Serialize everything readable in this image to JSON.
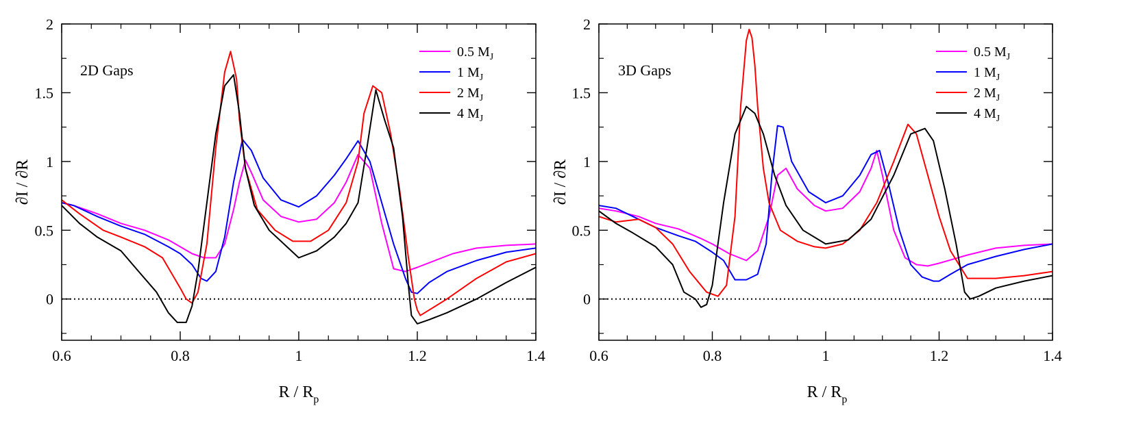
{
  "chart_data": [
    {
      "type": "line",
      "annotation": "2D Gaps",
      "xlabel": "R / R",
      "xlabel_sub": "p",
      "ylabel": "∂I / ∂R",
      "xlim": [
        0.6,
        1.4
      ],
      "ylim": [
        -0.3,
        2.0
      ],
      "xticks": [
        0.6,
        0.8,
        1.0,
        1.2,
        1.4
      ],
      "xtick_labels": [
        "0.6",
        "0.8",
        "1",
        "1.2",
        "1.4"
      ],
      "yticks": [
        0,
        0.5,
        1.0,
        1.5,
        2.0
      ],
      "ytick_labels": [
        "0",
        "0.5",
        "1",
        "1.5",
        "2"
      ],
      "zero_line": true,
      "grid": false,
      "legend": "top-right",
      "series": [
        {
          "name": "0.5 M",
          "sub": "J",
          "color": "#ff00ff",
          "x": [
            0.6,
            0.62,
            0.66,
            0.7,
            0.74,
            0.78,
            0.8,
            0.82,
            0.84,
            0.86,
            0.875,
            0.89,
            0.9,
            0.91,
            0.92,
            0.94,
            0.97,
            1.0,
            1.03,
            1.06,
            1.08,
            1.1,
            1.12,
            1.14,
            1.16,
            1.18,
            1.2,
            1.23,
            1.26,
            1.3,
            1.35,
            1.4
          ],
          "y": [
            0.7,
            0.68,
            0.62,
            0.55,
            0.5,
            0.43,
            0.38,
            0.33,
            0.3,
            0.3,
            0.4,
            0.65,
            0.85,
            1.01,
            0.92,
            0.72,
            0.6,
            0.56,
            0.58,
            0.7,
            0.85,
            1.05,
            0.95,
            0.55,
            0.22,
            0.2,
            0.23,
            0.28,
            0.33,
            0.37,
            0.39,
            0.4
          ]
        },
        {
          "name": "1 M",
          "sub": "J",
          "color": "#0000ff",
          "x": [
            0.6,
            0.62,
            0.66,
            0.7,
            0.74,
            0.78,
            0.8,
            0.82,
            0.835,
            0.845,
            0.86,
            0.875,
            0.89,
            0.905,
            0.92,
            0.94,
            0.97,
            1.0,
            1.03,
            1.06,
            1.08,
            1.1,
            1.12,
            1.14,
            1.16,
            1.18,
            1.19,
            1.2,
            1.22,
            1.25,
            1.3,
            1.35,
            1.4
          ],
          "y": [
            0.7,
            0.68,
            0.6,
            0.53,
            0.47,
            0.38,
            0.33,
            0.25,
            0.15,
            0.13,
            0.2,
            0.45,
            0.85,
            1.16,
            1.08,
            0.88,
            0.72,
            0.67,
            0.75,
            0.9,
            1.02,
            1.15,
            1.0,
            0.7,
            0.4,
            0.15,
            0.05,
            0.04,
            0.12,
            0.2,
            0.28,
            0.34,
            0.37
          ]
        },
        {
          "name": "2 M",
          "sub": "J",
          "color": "#ff0000",
          "x": [
            0.6,
            0.63,
            0.67,
            0.7,
            0.74,
            0.77,
            0.8,
            0.81,
            0.82,
            0.83,
            0.845,
            0.86,
            0.875,
            0.885,
            0.895,
            0.9,
            0.91,
            0.93,
            0.96,
            0.99,
            1.02,
            1.05,
            1.08,
            1.1,
            1.11,
            1.125,
            1.14,
            1.155,
            1.17,
            1.185,
            1.195,
            1.2,
            1.205,
            1.22,
            1.25,
            1.3,
            1.35,
            1.4
          ],
          "y": [
            0.72,
            0.62,
            0.5,
            0.45,
            0.38,
            0.3,
            0.08,
            0.0,
            -0.03,
            0.05,
            0.4,
            1.1,
            1.65,
            1.8,
            1.6,
            1.3,
            0.95,
            0.65,
            0.5,
            0.42,
            0.42,
            0.5,
            0.7,
            1.0,
            1.35,
            1.55,
            1.5,
            1.2,
            0.8,
            0.3,
            0.0,
            -0.08,
            -0.12,
            -0.08,
            0.0,
            0.15,
            0.27,
            0.33
          ]
        },
        {
          "name": "4 M",
          "sub": "J",
          "color": "#000000",
          "x": [
            0.6,
            0.63,
            0.66,
            0.7,
            0.73,
            0.76,
            0.78,
            0.795,
            0.81,
            0.82,
            0.83,
            0.845,
            0.86,
            0.875,
            0.89,
            0.9,
            0.91,
            0.925,
            0.95,
            0.98,
            1.0,
            1.03,
            1.06,
            1.08,
            1.1,
            1.115,
            1.13,
            1.145,
            1.16,
            1.175,
            1.185,
            1.19,
            1.2,
            1.22,
            1.25,
            1.3,
            1.35,
            1.4
          ],
          "y": [
            0.68,
            0.55,
            0.45,
            0.35,
            0.2,
            0.05,
            -0.1,
            -0.17,
            -0.17,
            -0.05,
            0.2,
            0.7,
            1.2,
            1.55,
            1.63,
            1.35,
            0.95,
            0.68,
            0.5,
            0.38,
            0.3,
            0.35,
            0.45,
            0.55,
            0.7,
            1.1,
            1.52,
            1.3,
            1.1,
            0.6,
            0.1,
            -0.12,
            -0.18,
            -0.15,
            -0.1,
            0.0,
            0.12,
            0.23
          ]
        }
      ]
    },
    {
      "type": "line",
      "annotation": "3D Gaps",
      "xlabel": "R / R",
      "xlabel_sub": "p",
      "ylabel": "∂I / ∂R",
      "xlim": [
        0.6,
        1.4
      ],
      "ylim": [
        -0.3,
        2.0
      ],
      "xticks": [
        0.6,
        0.8,
        1.0,
        1.2,
        1.4
      ],
      "xtick_labels": [
        "0.6",
        "0.8",
        "1",
        "1.2",
        "1.4"
      ],
      "yticks": [
        0,
        0.5,
        1.0,
        1.5,
        2.0
      ],
      "ytick_labels": [
        "0",
        "0.5",
        "1",
        "1.5",
        "2"
      ],
      "zero_line": true,
      "grid": false,
      "legend": "top-right",
      "series": [
        {
          "name": "0.5 M",
          "sub": "J",
          "color": "#ff00ff",
          "x": [
            0.6,
            0.63,
            0.67,
            0.7,
            0.74,
            0.78,
            0.8,
            0.83,
            0.86,
            0.88,
            0.9,
            0.915,
            0.93,
            0.95,
            0.98,
            1.0,
            1.03,
            1.06,
            1.08,
            1.09,
            1.1,
            1.12,
            1.14,
            1.16,
            1.18,
            1.2,
            1.25,
            1.3,
            1.35,
            1.4
          ],
          "y": [
            0.66,
            0.64,
            0.6,
            0.55,
            0.51,
            0.44,
            0.4,
            0.33,
            0.28,
            0.35,
            0.6,
            0.9,
            0.95,
            0.8,
            0.68,
            0.64,
            0.66,
            0.78,
            0.95,
            1.08,
            0.9,
            0.5,
            0.3,
            0.25,
            0.24,
            0.26,
            0.32,
            0.37,
            0.39,
            0.4
          ]
        },
        {
          "name": "1 M",
          "sub": "J",
          "color": "#0000ff",
          "x": [
            0.6,
            0.63,
            0.67,
            0.7,
            0.74,
            0.77,
            0.8,
            0.82,
            0.84,
            0.86,
            0.88,
            0.895,
            0.905,
            0.915,
            0.925,
            0.94,
            0.97,
            1.0,
            1.03,
            1.06,
            1.08,
            1.095,
            1.11,
            1.13,
            1.15,
            1.17,
            1.19,
            1.2,
            1.22,
            1.25,
            1.3,
            1.35,
            1.4
          ],
          "y": [
            0.68,
            0.66,
            0.58,
            0.52,
            0.46,
            0.42,
            0.34,
            0.28,
            0.14,
            0.14,
            0.18,
            0.4,
            0.9,
            1.26,
            1.25,
            1.0,
            0.78,
            0.7,
            0.75,
            0.9,
            1.05,
            1.08,
            0.85,
            0.5,
            0.25,
            0.16,
            0.13,
            0.13,
            0.18,
            0.25,
            0.31,
            0.36,
            0.4
          ]
        },
        {
          "name": "2 M",
          "sub": "J",
          "color": "#ff0000",
          "x": [
            0.6,
            0.63,
            0.67,
            0.7,
            0.73,
            0.76,
            0.79,
            0.81,
            0.825,
            0.84,
            0.85,
            0.86,
            0.865,
            0.87,
            0.875,
            0.88,
            0.89,
            0.9,
            0.91,
            0.92,
            0.95,
            0.98,
            1.0,
            1.03,
            1.06,
            1.09,
            1.12,
            1.145,
            1.16,
            1.18,
            1.2,
            1.22,
            1.25,
            1.3,
            1.35,
            1.4
          ],
          "y": [
            0.6,
            0.56,
            0.58,
            0.52,
            0.4,
            0.2,
            0.05,
            0.02,
            0.1,
            0.6,
            1.4,
            1.88,
            1.96,
            1.9,
            1.7,
            1.4,
            0.95,
            0.7,
            0.6,
            0.5,
            0.42,
            0.38,
            0.37,
            0.4,
            0.5,
            0.7,
            1.0,
            1.27,
            1.2,
            0.9,
            0.6,
            0.35,
            0.15,
            0.15,
            0.17,
            0.2
          ]
        },
        {
          "name": "4 M",
          "sub": "J",
          "color": "#000000",
          "x": [
            0.6,
            0.63,
            0.66,
            0.7,
            0.73,
            0.75,
            0.77,
            0.78,
            0.79,
            0.8,
            0.82,
            0.84,
            0.86,
            0.875,
            0.89,
            0.91,
            0.93,
            0.96,
            1.0,
            1.04,
            1.08,
            1.12,
            1.15,
            1.175,
            1.19,
            1.21,
            1.23,
            1.245,
            1.255,
            1.27,
            1.3,
            1.35,
            1.4
          ],
          "y": [
            0.64,
            0.55,
            0.48,
            0.38,
            0.25,
            0.05,
            0.0,
            -0.06,
            -0.04,
            0.1,
            0.7,
            1.2,
            1.4,
            1.35,
            1.2,
            0.9,
            0.68,
            0.5,
            0.4,
            0.43,
            0.58,
            0.9,
            1.2,
            1.24,
            1.15,
            0.8,
            0.4,
            0.05,
            0.0,
            0.02,
            0.08,
            0.13,
            0.17
          ]
        }
      ]
    }
  ]
}
